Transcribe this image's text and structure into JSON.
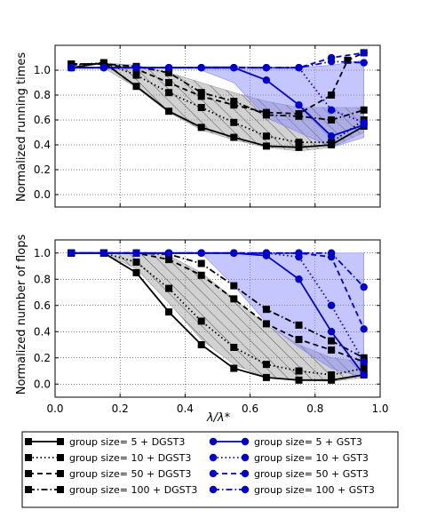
{
  "chart_data": [
    {
      "type": "line",
      "ylabel": "Normalized running times",
      "xlim": [
        0.0,
        1.0
      ],
      "ylim": [
        -0.1,
        1.2
      ],
      "yticks": [
        "0.0",
        "0.2",
        "0.4",
        "0.6",
        "0.8",
        "1.0"
      ],
      "grid": true,
      "bands": [
        {
          "group": "DGST3",
          "color": "#999999",
          "hatch": true,
          "x": [
            0.15,
            0.25,
            0.35,
            0.45,
            0.55,
            0.65,
            0.75,
            0.85,
            0.95
          ],
          "upper": [
            1.06,
            1.04,
            0.98,
            0.9,
            0.82,
            0.75,
            0.7,
            0.7,
            0.7
          ],
          "lower": [
            1.02,
            0.86,
            0.66,
            0.52,
            0.44,
            0.38,
            0.35,
            0.38,
            0.5
          ]
        },
        {
          "group": "GST3",
          "color": "#8080ff",
          "hatch": false,
          "x": [
            0.45,
            0.55,
            0.65,
            0.75,
            0.85,
            0.95
          ],
          "upper": [
            1.03,
            1.03,
            1.02,
            1.02,
            1.04,
            1.08
          ],
          "lower": [
            1.0,
            0.9,
            0.62,
            0.5,
            0.38,
            0.46
          ]
        }
      ],
      "series": [
        {
          "name": "group size= 5 + DGST3",
          "color": "#000000",
          "style": "solid",
          "marker": "square",
          "x": [
            0.05,
            0.15,
            0.25,
            0.35,
            0.45,
            0.55,
            0.65,
            0.75,
            0.85,
            0.95
          ],
          "y": [
            1.02,
            1.06,
            0.87,
            0.67,
            0.54,
            0.46,
            0.39,
            0.38,
            0.4,
            0.55
          ]
        },
        {
          "name": "group size= 10 + DGST3",
          "color": "#000000",
          "style": "dotted",
          "marker": "square",
          "x": [
            0.05,
            0.15,
            0.25,
            0.35,
            0.45,
            0.55,
            0.65,
            0.75,
            0.85,
            0.95
          ],
          "y": [
            1.04,
            1.06,
            0.96,
            0.82,
            0.7,
            0.58,
            0.47,
            0.42,
            0.42,
            0.6
          ]
        },
        {
          "name": "group size= 50 + DGST3",
          "color": "#000000",
          "style": "dashed",
          "marker": "square",
          "x": [
            0.05,
            0.15,
            0.25,
            0.35,
            0.45,
            0.55,
            0.65,
            0.75,
            0.85,
            0.9,
            0.95
          ],
          "y": [
            1.05,
            1.05,
            1.01,
            0.9,
            0.79,
            0.72,
            0.66,
            0.65,
            0.8,
            1.08,
            1.14
          ]
        },
        {
          "name": "group size= 100 + DGST3",
          "color": "#000000",
          "style": "dashdot",
          "marker": "square",
          "x": [
            0.05,
            0.15,
            0.25,
            0.35,
            0.45,
            0.55,
            0.65,
            0.75,
            0.85,
            0.95
          ],
          "y": [
            1.05,
            1.05,
            1.03,
            0.98,
            0.82,
            0.75,
            0.64,
            0.63,
            0.6,
            0.68
          ]
        },
        {
          "name": "group size= 5 + GST3",
          "color": "#0000cc",
          "style": "solid",
          "marker": "circle",
          "x": [
            0.05,
            0.15,
            0.25,
            0.35,
            0.45,
            0.55,
            0.65,
            0.75,
            0.85,
            0.95
          ],
          "y": [
            1.02,
            1.02,
            1.02,
            1.02,
            1.02,
            1.02,
            0.92,
            0.72,
            0.47,
            0.56
          ]
        },
        {
          "name": "group size= 10 + GST3",
          "color": "#0000cc",
          "style": "dotted",
          "marker": "circle",
          "x": [
            0.05,
            0.15,
            0.25,
            0.35,
            0.45,
            0.55,
            0.65,
            0.75,
            0.85,
            0.95
          ],
          "y": [
            1.02,
            1.02,
            1.02,
            1.02,
            1.02,
            1.02,
            1.02,
            1.02,
            0.68,
            0.58
          ]
        },
        {
          "name": "group size= 50 + GST3",
          "color": "#0000cc",
          "style": "dashed",
          "marker": "circle",
          "x": [
            0.05,
            0.15,
            0.25,
            0.35,
            0.45,
            0.55,
            0.65,
            0.75,
            0.85,
            0.95
          ],
          "y": [
            1.02,
            1.02,
            1.02,
            1.02,
            1.02,
            1.02,
            1.02,
            1.02,
            1.1,
            1.14
          ]
        },
        {
          "name": "group size= 100 + GST3",
          "color": "#0000cc",
          "style": "dashdot",
          "marker": "circle",
          "x": [
            0.05,
            0.15,
            0.25,
            0.35,
            0.45,
            0.55,
            0.65,
            0.75,
            0.85,
            0.95
          ],
          "y": [
            1.02,
            1.02,
            1.02,
            1.02,
            1.02,
            1.02,
            1.02,
            1.02,
            1.07,
            1.06
          ]
        }
      ]
    },
    {
      "type": "line",
      "ylabel": "Normalized number of flops",
      "xlabel": "λ/λ*",
      "xlim": [
        0.0,
        1.0
      ],
      "ylim": [
        -0.1,
        1.1
      ],
      "xticks": [
        "0.0",
        "0.2",
        "0.4",
        "0.6",
        "0.8",
        "1.0"
      ],
      "yticks": [
        "0.0",
        "0.2",
        "0.4",
        "0.6",
        "0.8",
        "1.0"
      ],
      "grid": true,
      "bands": [
        {
          "group": "DGST3",
          "color": "#999999",
          "hatch": true,
          "x": [
            0.15,
            0.25,
            0.35,
            0.45,
            0.55,
            0.65,
            0.75,
            0.85,
            0.95
          ],
          "upper": [
            1.0,
            1.0,
            0.98,
            0.85,
            0.65,
            0.45,
            0.3,
            0.2,
            0.17
          ],
          "lower": [
            1.0,
            0.88,
            0.62,
            0.34,
            0.15,
            0.05,
            0.03,
            0.02,
            0.05
          ]
        },
        {
          "group": "GST3",
          "color": "#8080ff",
          "hatch": false,
          "x": [
            0.45,
            0.55,
            0.65,
            0.75,
            0.85,
            0.95
          ],
          "upper": [
            1.0,
            1.0,
            1.0,
            1.0,
            1.0,
            1.0
          ],
          "lower": [
            1.0,
            0.75,
            0.47,
            0.28,
            0.12,
            0.05
          ]
        }
      ],
      "series": [
        {
          "name": "group size= 5 + DGST3",
          "color": "#000000",
          "style": "solid",
          "marker": "square",
          "x": [
            0.05,
            0.15,
            0.25,
            0.35,
            0.45,
            0.55,
            0.65,
            0.75,
            0.85,
            0.95
          ],
          "y": [
            1.0,
            1.0,
            0.85,
            0.55,
            0.3,
            0.12,
            0.05,
            0.03,
            0.03,
            0.07
          ]
        },
        {
          "name": "group size= 10 + DGST3",
          "color": "#000000",
          "style": "dotted",
          "marker": "square",
          "x": [
            0.05,
            0.15,
            0.25,
            0.35,
            0.45,
            0.55,
            0.65,
            0.75,
            0.85,
            0.95
          ],
          "y": [
            1.0,
            1.0,
            0.93,
            0.73,
            0.48,
            0.28,
            0.15,
            0.1,
            0.07,
            0.12
          ]
        },
        {
          "name": "group size= 50 + DGST3",
          "color": "#000000",
          "style": "dashed",
          "marker": "square",
          "x": [
            0.05,
            0.15,
            0.25,
            0.35,
            0.45,
            0.55,
            0.65,
            0.75,
            0.85,
            0.95
          ],
          "y": [
            1.0,
            1.0,
            1.0,
            0.95,
            0.83,
            0.65,
            0.46,
            0.34,
            0.26,
            0.17
          ]
        },
        {
          "name": "group size= 100 + DGST3",
          "color": "#000000",
          "style": "dashdot",
          "marker": "square",
          "x": [
            0.05,
            0.15,
            0.25,
            0.35,
            0.45,
            0.55,
            0.65,
            0.75,
            0.85,
            0.95
          ],
          "y": [
            1.0,
            1.0,
            1.0,
            0.99,
            0.92,
            0.75,
            0.57,
            0.45,
            0.33,
            0.2
          ]
        },
        {
          "name": "group size= 5 + GST3",
          "color": "#0000cc",
          "style": "solid",
          "marker": "circle",
          "x": [
            0.05,
            0.15,
            0.25,
            0.35,
            0.45,
            0.55,
            0.65,
            0.75,
            0.85,
            0.95
          ],
          "y": [
            1.0,
            1.0,
            1.0,
            1.0,
            1.0,
            1.0,
            0.98,
            0.8,
            0.4,
            0.07
          ]
        },
        {
          "name": "group size= 10 + GST3",
          "color": "#0000cc",
          "style": "dotted",
          "marker": "circle",
          "x": [
            0.05,
            0.15,
            0.25,
            0.35,
            0.45,
            0.55,
            0.65,
            0.75,
            0.85,
            0.95
          ],
          "y": [
            1.0,
            1.0,
            1.0,
            1.0,
            1.0,
            1.0,
            1.0,
            0.97,
            0.6,
            0.17
          ]
        },
        {
          "name": "group size= 50 + GST3",
          "color": "#0000cc",
          "style": "dashed",
          "marker": "circle",
          "x": [
            0.05,
            0.15,
            0.25,
            0.35,
            0.45,
            0.55,
            0.65,
            0.75,
            0.85,
            0.95
          ],
          "y": [
            1.0,
            1.0,
            1.0,
            1.0,
            1.0,
            1.0,
            1.0,
            1.0,
            0.97,
            0.42
          ]
        },
        {
          "name": "group size= 100 + GST3",
          "color": "#0000cc",
          "style": "dashdot",
          "marker": "circle",
          "x": [
            0.05,
            0.15,
            0.25,
            0.35,
            0.45,
            0.55,
            0.65,
            0.75,
            0.85,
            0.95
          ],
          "y": [
            1.0,
            1.0,
            1.0,
            1.0,
            1.0,
            1.0,
            1.0,
            1.0,
            1.0,
            0.74
          ]
        }
      ]
    }
  ],
  "legend": {
    "placement": "bottom",
    "columns": 2,
    "entries": [
      {
        "label": "group size= 5 + DGST3",
        "color": "#000000",
        "style": "solid",
        "marker": "square"
      },
      {
        "label": "group size= 5 + GST3",
        "color": "#0000cc",
        "style": "solid",
        "marker": "circle"
      },
      {
        "label": "group size= 10 + DGST3",
        "color": "#000000",
        "style": "dotted",
        "marker": "square"
      },
      {
        "label": "group size= 10 + GST3",
        "color": "#0000cc",
        "style": "dotted",
        "marker": "circle"
      },
      {
        "label": "group size= 50 + DGST3",
        "color": "#000000",
        "style": "dashed",
        "marker": "square"
      },
      {
        "label": "group size= 50 + GST3",
        "color": "#0000cc",
        "style": "dashed",
        "marker": "circle"
      },
      {
        "label": "group size= 100 + DGST3",
        "color": "#000000",
        "style": "dashdot",
        "marker": "square"
      },
      {
        "label": "group size= 100 + GST3",
        "color": "#0000cc",
        "style": "dashdot",
        "marker": "circle"
      }
    ]
  }
}
